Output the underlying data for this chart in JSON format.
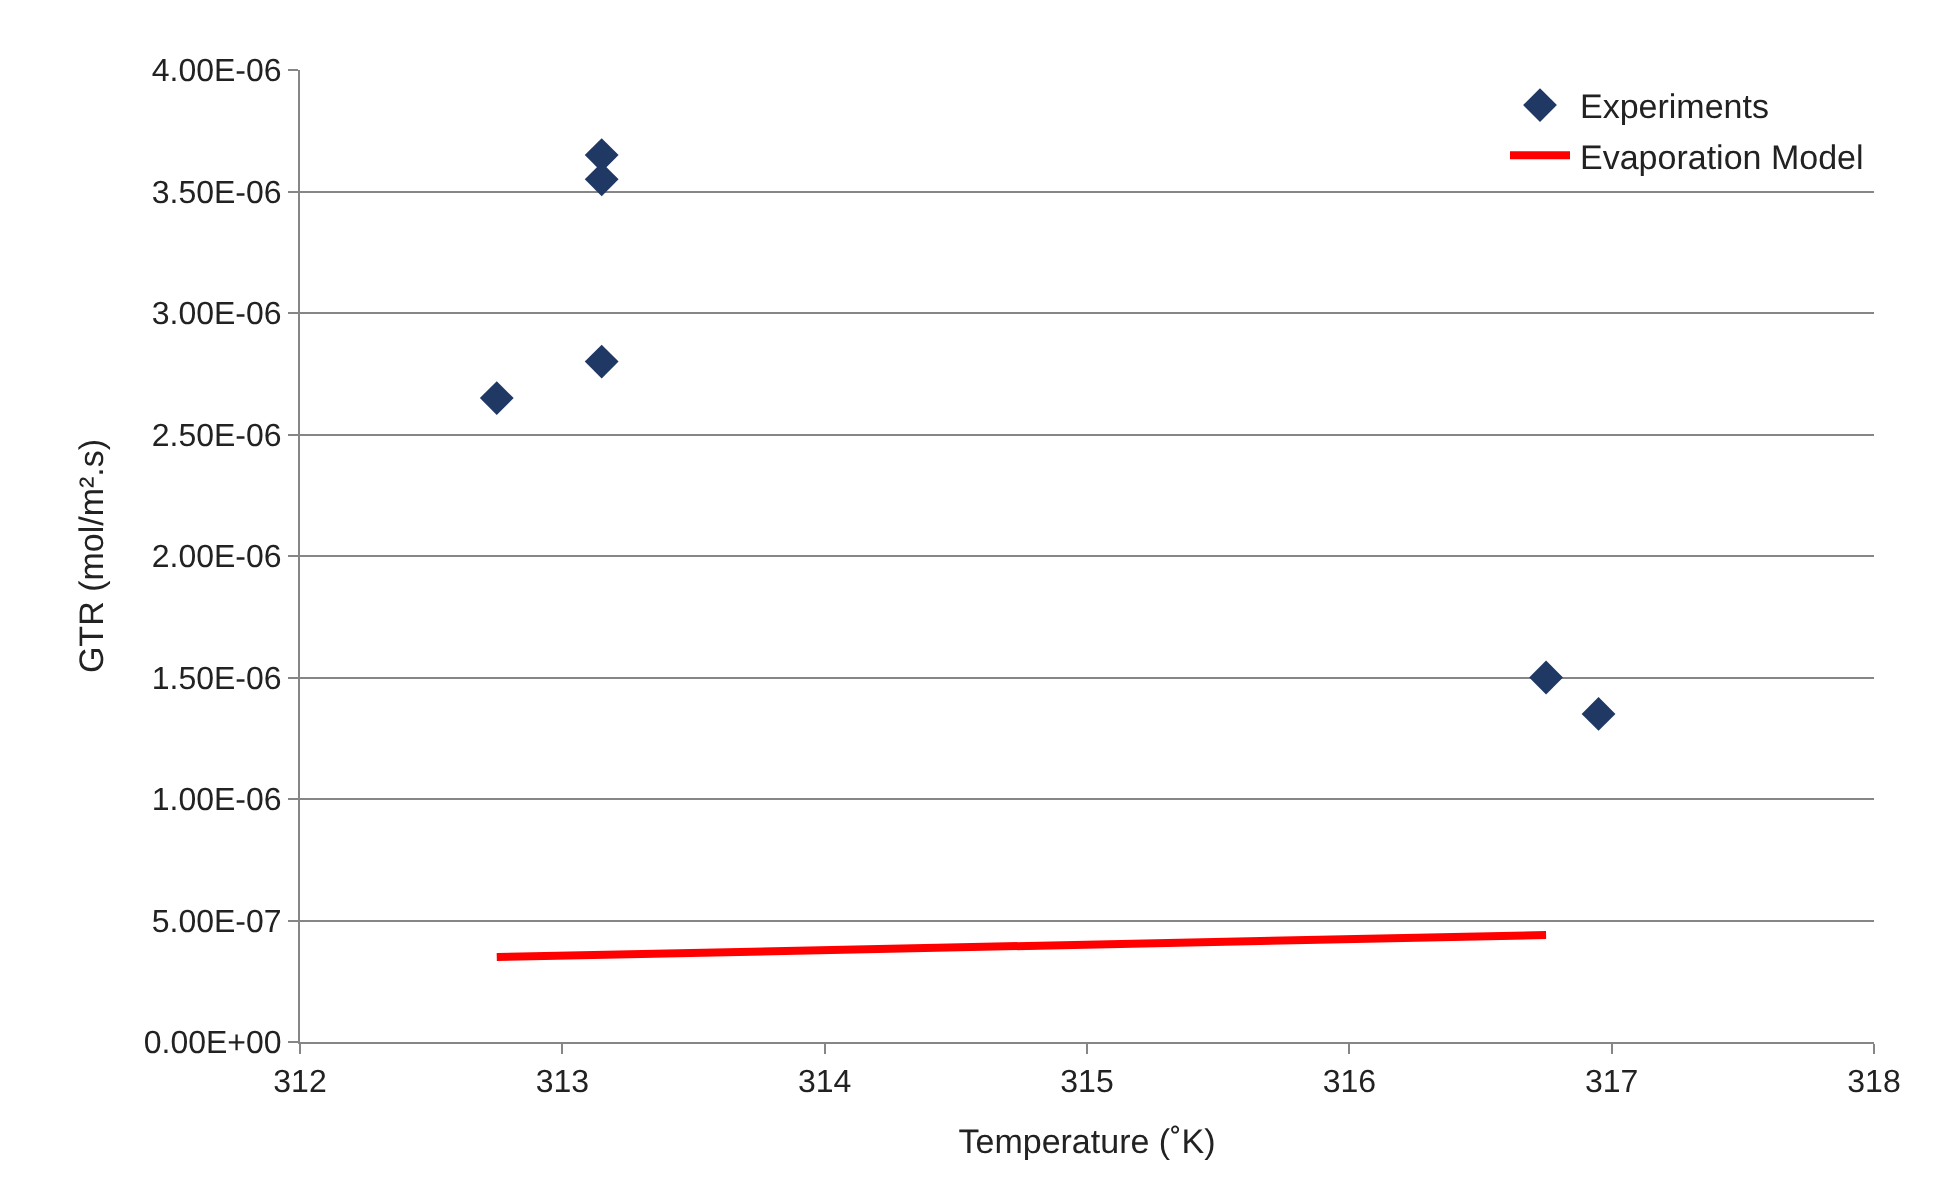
{
  "chart_data": {
    "type": "scatter",
    "xlabel": "Temperature (˚K)",
    "ylabel": "GTR (mol/m².s)",
    "xlim": [
      312,
      318
    ],
    "xticks": [
      312,
      313,
      314,
      315,
      316,
      317,
      318
    ],
    "ylim": [
      0,
      4e-06
    ],
    "yticks": [
      {
        "value": 0,
        "label": "0.00E+00"
      },
      {
        "value": 5e-07,
        "label": "5.00E-07"
      },
      {
        "value": 1e-06,
        "label": "1.00E-06"
      },
      {
        "value": 1.5e-06,
        "label": "1.50E-06"
      },
      {
        "value": 2e-06,
        "label": "2.00E-06"
      },
      {
        "value": 2.5e-06,
        "label": "2.50E-06"
      },
      {
        "value": 3e-06,
        "label": "3.00E-06"
      },
      {
        "value": 3.5e-06,
        "label": "3.50E-06"
      },
      {
        "value": 4e-06,
        "label": "4.00E-06"
      }
    ],
    "grid": "y",
    "legend": "top right",
    "series": [
      {
        "name": "Experiments",
        "marker": "diamond",
        "color": "#1f3864",
        "x": [
          312.75,
          313.15,
          313.15,
          313.15,
          316.75,
          316.95
        ],
        "values": [
          2.65e-06,
          3.65e-06,
          3.55e-06,
          2.8e-06,
          1.5e-06,
          1.35e-06
        ]
      },
      {
        "name": "Evaporation Model",
        "type": "line",
        "marker": "none",
        "color": "#ff0000",
        "x": [
          312.75,
          316.75
        ],
        "values": [
          3.5e-07,
          4.4e-07
        ]
      }
    ]
  }
}
